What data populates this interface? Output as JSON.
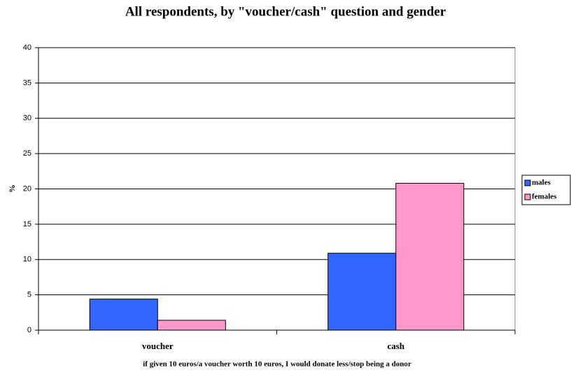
{
  "chart_data": {
    "type": "bar",
    "title": "All respondents, by \"voucher/cash\" question and gender",
    "y_label": "%",
    "x_label": "if given 10 euros/a voucher worth 10 euros, I would donate less/stop being a donor",
    "categories": [
      "voucher",
      "cash"
    ],
    "series": [
      {
        "name": "males",
        "color": "#3366ff",
        "values": [
          4.4,
          10.9
        ]
      },
      {
        "name": "females",
        "color": "#ff99cc",
        "values": [
          1.4,
          20.8
        ]
      }
    ],
    "ylim": [
      0,
      40
    ],
    "yticks": [
      0,
      5,
      10,
      15,
      20,
      25,
      30,
      35,
      40
    ],
    "grid": true,
    "legend": "right"
  }
}
